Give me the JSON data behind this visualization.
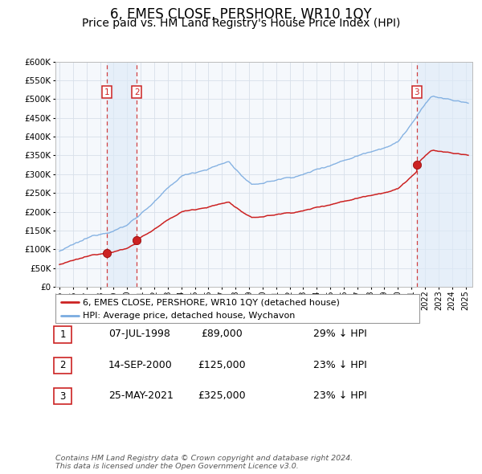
{
  "title": "6, EMES CLOSE, PERSHORE, WR10 1QY",
  "subtitle": "Price paid vs. HM Land Registry's House Price Index (HPI)",
  "ylim": [
    0,
    600000
  ],
  "yticks": [
    0,
    50000,
    100000,
    150000,
    200000,
    250000,
    300000,
    350000,
    400000,
    450000,
    500000,
    550000,
    600000
  ],
  "xlim_start": 1994.7,
  "xlim_end": 2025.5,
  "background_color": "#ffffff",
  "plot_bg_color": "#f5f8fc",
  "grid_color": "#d8e0ea",
  "sale_color": "#cc2222",
  "hpi_color": "#7aabe0",
  "sale_label": "6, EMES CLOSE, PERSHORE, WR10 1QY (detached house)",
  "hpi_label": "HPI: Average price, detached house, Wychavon",
  "transactions": [
    {
      "date": 1998.52,
      "price": 89000,
      "label": "1",
      "pct": "29% ↓ HPI",
      "date_str": "07-JUL-1998",
      "price_str": "£89,000"
    },
    {
      "date": 2000.71,
      "price": 125000,
      "label": "2",
      "pct": "23% ↓ HPI",
      "date_str": "14-SEP-2000",
      "price_str": "£125,000"
    },
    {
      "date": 2021.4,
      "price": 325000,
      "label": "3",
      "pct": "23% ↓ HPI",
      "date_str": "25-MAY-2021",
      "price_str": "£325,000"
    }
  ],
  "footer": "Contains HM Land Registry data © Crown copyright and database right 2024.\nThis data is licensed under the Open Government Licence v3.0.",
  "title_fontsize": 12,
  "subtitle_fontsize": 10,
  "shade_color": "#ddeaf8",
  "shade_alpha": 0.6
}
